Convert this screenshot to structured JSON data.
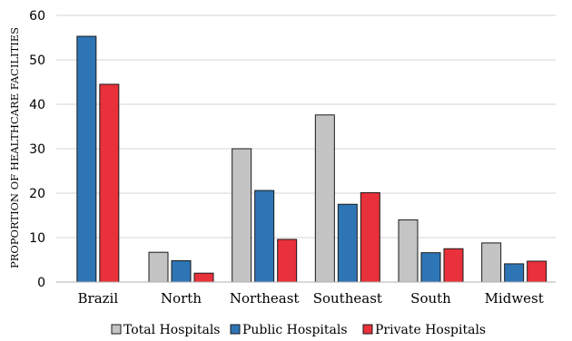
{
  "chart_data": {
    "type": "bar",
    "title": "",
    "xlabel": "",
    "ylabel": "PROPORTION OF HEALTHCARE FACILITIES",
    "ylim": [
      0,
      60
    ],
    "yticks": [
      "0",
      "10",
      "20",
      "30",
      "40",
      "50",
      "60"
    ],
    "grid": true,
    "legend_position": "bottom",
    "categories": [
      "Brazil",
      "North",
      "Northeast",
      "Southeast",
      "South",
      "Midwest"
    ],
    "series": [
      {
        "name": "Total Hospitals",
        "color": "#c4c4c4",
        "values": [
          null,
          6.7,
          30,
          37.6,
          14,
          8.8
        ]
      },
      {
        "name": "Public Hospitals",
        "color": "#2e75b6",
        "values": [
          55.3,
          4.8,
          20.6,
          17.5,
          6.6,
          4.1
        ]
      },
      {
        "name": "Private Hospitals",
        "color": "#e8313a",
        "values": [
          44.5,
          2,
          9.6,
          20.1,
          7.5,
          4.7
        ]
      }
    ]
  }
}
